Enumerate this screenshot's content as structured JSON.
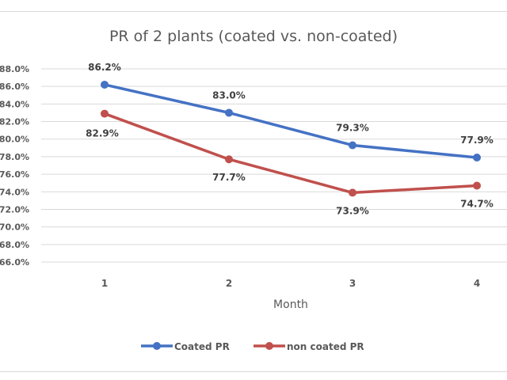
{
  "chart_data": {
    "type": "line",
    "title": "PR of 2 plants (coated vs. non-coated)",
    "xlabel": "Month",
    "ylabel": "",
    "categories": [
      "1",
      "2",
      "3",
      "4"
    ],
    "ylim": [
      66.0,
      88.0
    ],
    "ystep": 2.0,
    "yticks": [
      "88.0%",
      "86.0%",
      "84.0%",
      "82.0%",
      "80.0%",
      "78.0%",
      "76.0%",
      "74.0%",
      "72.0%",
      "70.0%",
      "68.0%",
      "66.0%"
    ],
    "grid": true,
    "legend_position": "bottom",
    "series": [
      {
        "name": "Coated PR",
        "color": "#4472c4",
        "values": [
          86.2,
          83.0,
          79.3,
          77.9
        ],
        "labels": [
          "86.2%",
          "83.0%",
          "79.3%",
          "77.9%"
        ],
        "label_placement": "above"
      },
      {
        "name": "non coated PR",
        "color": "#c0504d",
        "values": [
          82.9,
          77.7,
          73.9,
          74.7
        ],
        "labels": [
          "82.9%",
          "77.7%",
          "73.9%",
          "74.7%"
        ],
        "label_placement": "below"
      }
    ]
  }
}
